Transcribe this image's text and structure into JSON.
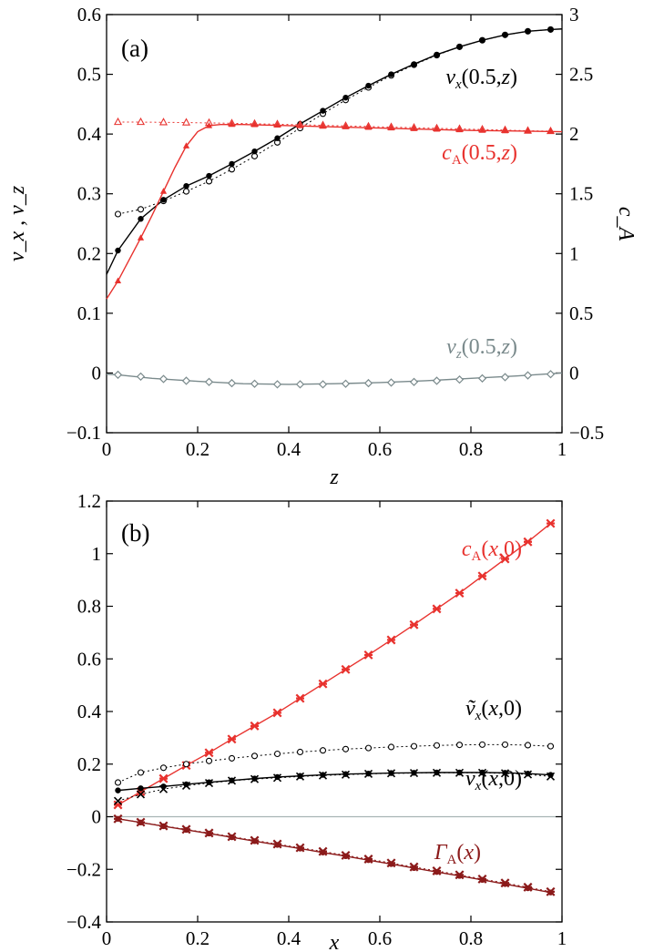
{
  "chart_data": [
    {
      "type": "line",
      "panel": "(a)",
      "xlabel": "z",
      "ylabel": "v_x , v_z",
      "y2label": "c_A",
      "xlim": [
        0,
        1
      ],
      "ylim": [
        -0.1,
        0.6
      ],
      "y2lim": [
        -0.5,
        3
      ],
      "xticks": [
        "0",
        "0.2",
        "0.4",
        "0.6",
        "0.8",
        "1"
      ],
      "yticks": [
        "−0.1",
        "0",
        "0.1",
        "0.2",
        "0.3",
        "0.4",
        "0.5",
        "0.6"
      ],
      "y2ticks": [
        "−0.5",
        "0",
        "0.5",
        "1",
        "1.5",
        "2",
        "2.5",
        "3"
      ],
      "series": [
        {
          "name": "v_x(0.5,z)",
          "label": {
            "main": "v",
            "sub": "x",
            "rest": "(0.5,",
            "var": "z",
            "end": ")"
          },
          "axis": "left",
          "color": "#000000",
          "line": {
            "x": [
              0,
              0.025,
              0.075,
              0.125,
              0.175,
              0.225,
              0.275,
              0.325,
              0.375,
              0.425,
              0.475,
              0.525,
              0.575,
              0.625,
              0.675,
              0.725,
              0.775,
              0.825,
              0.875,
              0.925,
              0.975,
              1.0
            ],
            "y": [
              0.165,
              0.205,
              0.258,
              0.29,
              0.313,
              0.33,
              0.35,
              0.371,
              0.393,
              0.417,
              0.439,
              0.461,
              0.481,
              0.5,
              0.517,
              0.533,
              0.546,
              0.557,
              0.566,
              0.572,
              0.575,
              0.576
            ]
          },
          "filled": {
            "x": [
              0.025,
              0.075,
              0.125,
              0.175,
              0.225,
              0.275,
              0.325,
              0.375,
              0.425,
              0.475,
              0.525,
              0.575,
              0.625,
              0.675,
              0.725,
              0.775,
              0.825,
              0.875,
              0.925,
              0.975
            ],
            "y": [
              0.205,
              0.258,
              0.29,
              0.313,
              0.33,
              0.35,
              0.371,
              0.393,
              0.417,
              0.439,
              0.461,
              0.481,
              0.5,
              0.517,
              0.533,
              0.546,
              0.557,
              0.566,
              0.572,
              0.575
            ]
          },
          "open": {
            "x": [
              0.025,
              0.075,
              0.125,
              0.175,
              0.225,
              0.275,
              0.325,
              0.375,
              0.425,
              0.475,
              0.525,
              0.575,
              0.625,
              0.675,
              0.725,
              0.775,
              0.825,
              0.875,
              0.925,
              0.975
            ],
            "y": [
              0.266,
              0.274,
              0.288,
              0.304,
              0.321,
              0.341,
              0.363,
              0.386,
              0.41,
              0.434,
              0.457,
              0.478,
              0.498,
              0.516,
              0.532,
              0.546,
              0.557,
              0.566,
              0.572,
              0.575
            ]
          }
        },
        {
          "name": "c_A(0.5,z)",
          "label": {
            "main": "c",
            "sub": "A",
            "rest": "(0.5,",
            "var": "z",
            "end": ")"
          },
          "axis": "right",
          "color": "#e8322e",
          "line": {
            "x": [
              0,
              0.025,
              0.05,
              0.075,
              0.1,
              0.125,
              0.15,
              0.175,
              0.2,
              0.225,
              0.25,
              0.275,
              0.3,
              0.35,
              0.4,
              0.5,
              0.6,
              0.7,
              0.8,
              0.9,
              1.0
            ],
            "y": [
              0.62,
              0.77,
              0.95,
              1.13,
              1.32,
              1.52,
              1.72,
              1.9,
              2.02,
              2.07,
              2.08,
              2.08,
              2.08,
              2.075,
              2.07,
              2.06,
              2.05,
              2.04,
              2.03,
              2.025,
              2.02
            ]
          },
          "filled": {
            "x": [
              0.025,
              0.075,
              0.125,
              0.175,
              0.225,
              0.275,
              0.325,
              0.375,
              0.425,
              0.475,
              0.525,
              0.575,
              0.625,
              0.675,
              0.725,
              0.775,
              0.825,
              0.875,
              0.925,
              0.975
            ],
            "y": [
              0.77,
              1.13,
              1.52,
              1.9,
              2.07,
              2.08,
              2.078,
              2.074,
              2.07,
              2.065,
              2.06,
              2.055,
              2.05,
              2.045,
              2.04,
              2.035,
              2.03,
              2.027,
              2.024,
              2.022
            ]
          },
          "open": {
            "x": [
              0.025,
              0.075,
              0.125,
              0.175,
              0.225,
              0.275,
              0.325,
              0.375,
              0.425,
              0.475,
              0.525,
              0.575,
              0.625,
              0.675,
              0.725,
              0.775,
              0.825,
              0.875,
              0.925,
              0.975
            ],
            "y": [
              2.1,
              2.1,
              2.098,
              2.096,
              2.093,
              2.09,
              2.086,
              2.082,
              2.078,
              2.073,
              2.068,
              2.063,
              2.058,
              2.053,
              2.048,
              2.043,
              2.038,
              2.033,
              2.028,
              2.024
            ]
          }
        },
        {
          "name": "v_z(0.5,z)",
          "label": {
            "main": "v",
            "sub": "z",
            "rest": "(0.5,",
            "var": "z",
            "end": ")"
          },
          "axis": "left",
          "color": "#7a8a8c",
          "line": {
            "x": [
              0,
              0.025,
              0.1,
              0.2,
              0.3,
              0.4,
              0.5,
              0.6,
              0.7,
              0.8,
              0.9,
              1.0
            ],
            "y": [
              -0.002,
              -0.003,
              -0.009,
              -0.014,
              -0.018,
              -0.019,
              -0.018,
              -0.016,
              -0.013,
              -0.009,
              -0.005,
              0.0
            ]
          },
          "markers": {
            "x": [
              0.025,
              0.075,
              0.125,
              0.175,
              0.225,
              0.275,
              0.325,
              0.375,
              0.425,
              0.475,
              0.525,
              0.575,
              0.625,
              0.675,
              0.725,
              0.775,
              0.825,
              0.875,
              0.925,
              0.975
            ],
            "y": [
              -0.003,
              -0.006,
              -0.01,
              -0.013,
              -0.015,
              -0.017,
              -0.018,
              -0.019,
              -0.019,
              -0.019,
              -0.018,
              -0.017,
              -0.016,
              -0.015,
              -0.013,
              -0.011,
              -0.009,
              -0.007,
              -0.004,
              -0.002
            ]
          }
        }
      ]
    },
    {
      "type": "line",
      "panel": "(b)",
      "xlabel": "x",
      "xlim": [
        0,
        1
      ],
      "ylim": [
        -0.4,
        1.2
      ],
      "xticks": [
        "0",
        "0.2",
        "0.4",
        "0.6",
        "0.8",
        "1"
      ],
      "yticks": [
        "−0.4",
        "−0.2",
        "0",
        "0.2",
        "0.4",
        "0.6",
        "0.8",
        "1",
        "1.2"
      ],
      "x": [
        0.025,
        0.075,
        0.125,
        0.175,
        0.225,
        0.275,
        0.325,
        0.375,
        0.425,
        0.475,
        0.525,
        0.575,
        0.625,
        0.675,
        0.725,
        0.775,
        0.825,
        0.875,
        0.925,
        0.975
      ],
      "series": [
        {
          "name": "c_A(x,0)",
          "label": {
            "main": "c",
            "sub": "A",
            "rest": "(",
            "var": "x",
            "end": ",0)"
          },
          "color": "#e8322e",
          "values": [
            0.045,
            0.095,
            0.145,
            0.195,
            0.243,
            0.295,
            0.345,
            0.395,
            0.45,
            0.505,
            0.56,
            0.615,
            0.672,
            0.73,
            0.79,
            0.85,
            0.915,
            0.98,
            1.045,
            1.115
          ]
        },
        {
          "name": "ṽ_x(x,0)",
          "label": {
            "main": "ṽ",
            "sub": "x",
            "rest": "(",
            "var": "x",
            "end": ",0)"
          },
          "color": "#000000",
          "values": [
            0.13,
            0.168,
            0.186,
            0.2,
            0.212,
            0.222,
            0.231,
            0.239,
            0.246,
            0.252,
            0.257,
            0.261,
            0.265,
            0.268,
            0.271,
            0.273,
            0.274,
            0.274,
            0.272,
            0.268
          ]
        },
        {
          "name": "v_x(x,0)",
          "label": {
            "main": "v",
            "sub": "x",
            "rest": "(",
            "var": "x",
            "end": ",0)"
          },
          "color": "#000000",
          "values": [
            0.1,
            0.108,
            0.115,
            0.123,
            0.131,
            0.138,
            0.145,
            0.151,
            0.155,
            0.159,
            0.162,
            0.164,
            0.166,
            0.167,
            0.168,
            0.168,
            0.168,
            0.167,
            0.164,
            0.159
          ],
          "cross": [
            0.06,
            0.085,
            0.105,
            0.118,
            0.128,
            0.137,
            0.143,
            0.148,
            0.153,
            0.157,
            0.16,
            0.163,
            0.165,
            0.166,
            0.167,
            0.167,
            0.167,
            0.165,
            0.161,
            0.153
          ]
        },
        {
          "name": "Γ_A(x)",
          "label": {
            "main": "Γ",
            "sub": "A",
            "rest": "(",
            "var": "x",
            "end": ")"
          },
          "color": "#8b1a1a",
          "values": [
            -0.008,
            -0.022,
            -0.036,
            -0.05,
            -0.064,
            -0.078,
            -0.093,
            -0.107,
            -0.121,
            -0.136,
            -0.15,
            -0.165,
            -0.18,
            -0.195,
            -0.21,
            -0.225,
            -0.24,
            -0.256,
            -0.272,
            -0.288
          ],
          "cross": [
            -0.008,
            -0.021,
            -0.035,
            -0.048,
            -0.062,
            -0.076,
            -0.09,
            -0.104,
            -0.118,
            -0.132,
            -0.147,
            -0.161,
            -0.176,
            -0.191,
            -0.206,
            -0.221,
            -0.237,
            -0.252,
            -0.268,
            -0.285
          ]
        }
      ]
    }
  ],
  "colors": {
    "black": "#000000",
    "red": "#e8322e",
    "darkred": "#8b1a1a",
    "gray": "#7a8a8c",
    "zero_line": "#a8b4b4"
  }
}
